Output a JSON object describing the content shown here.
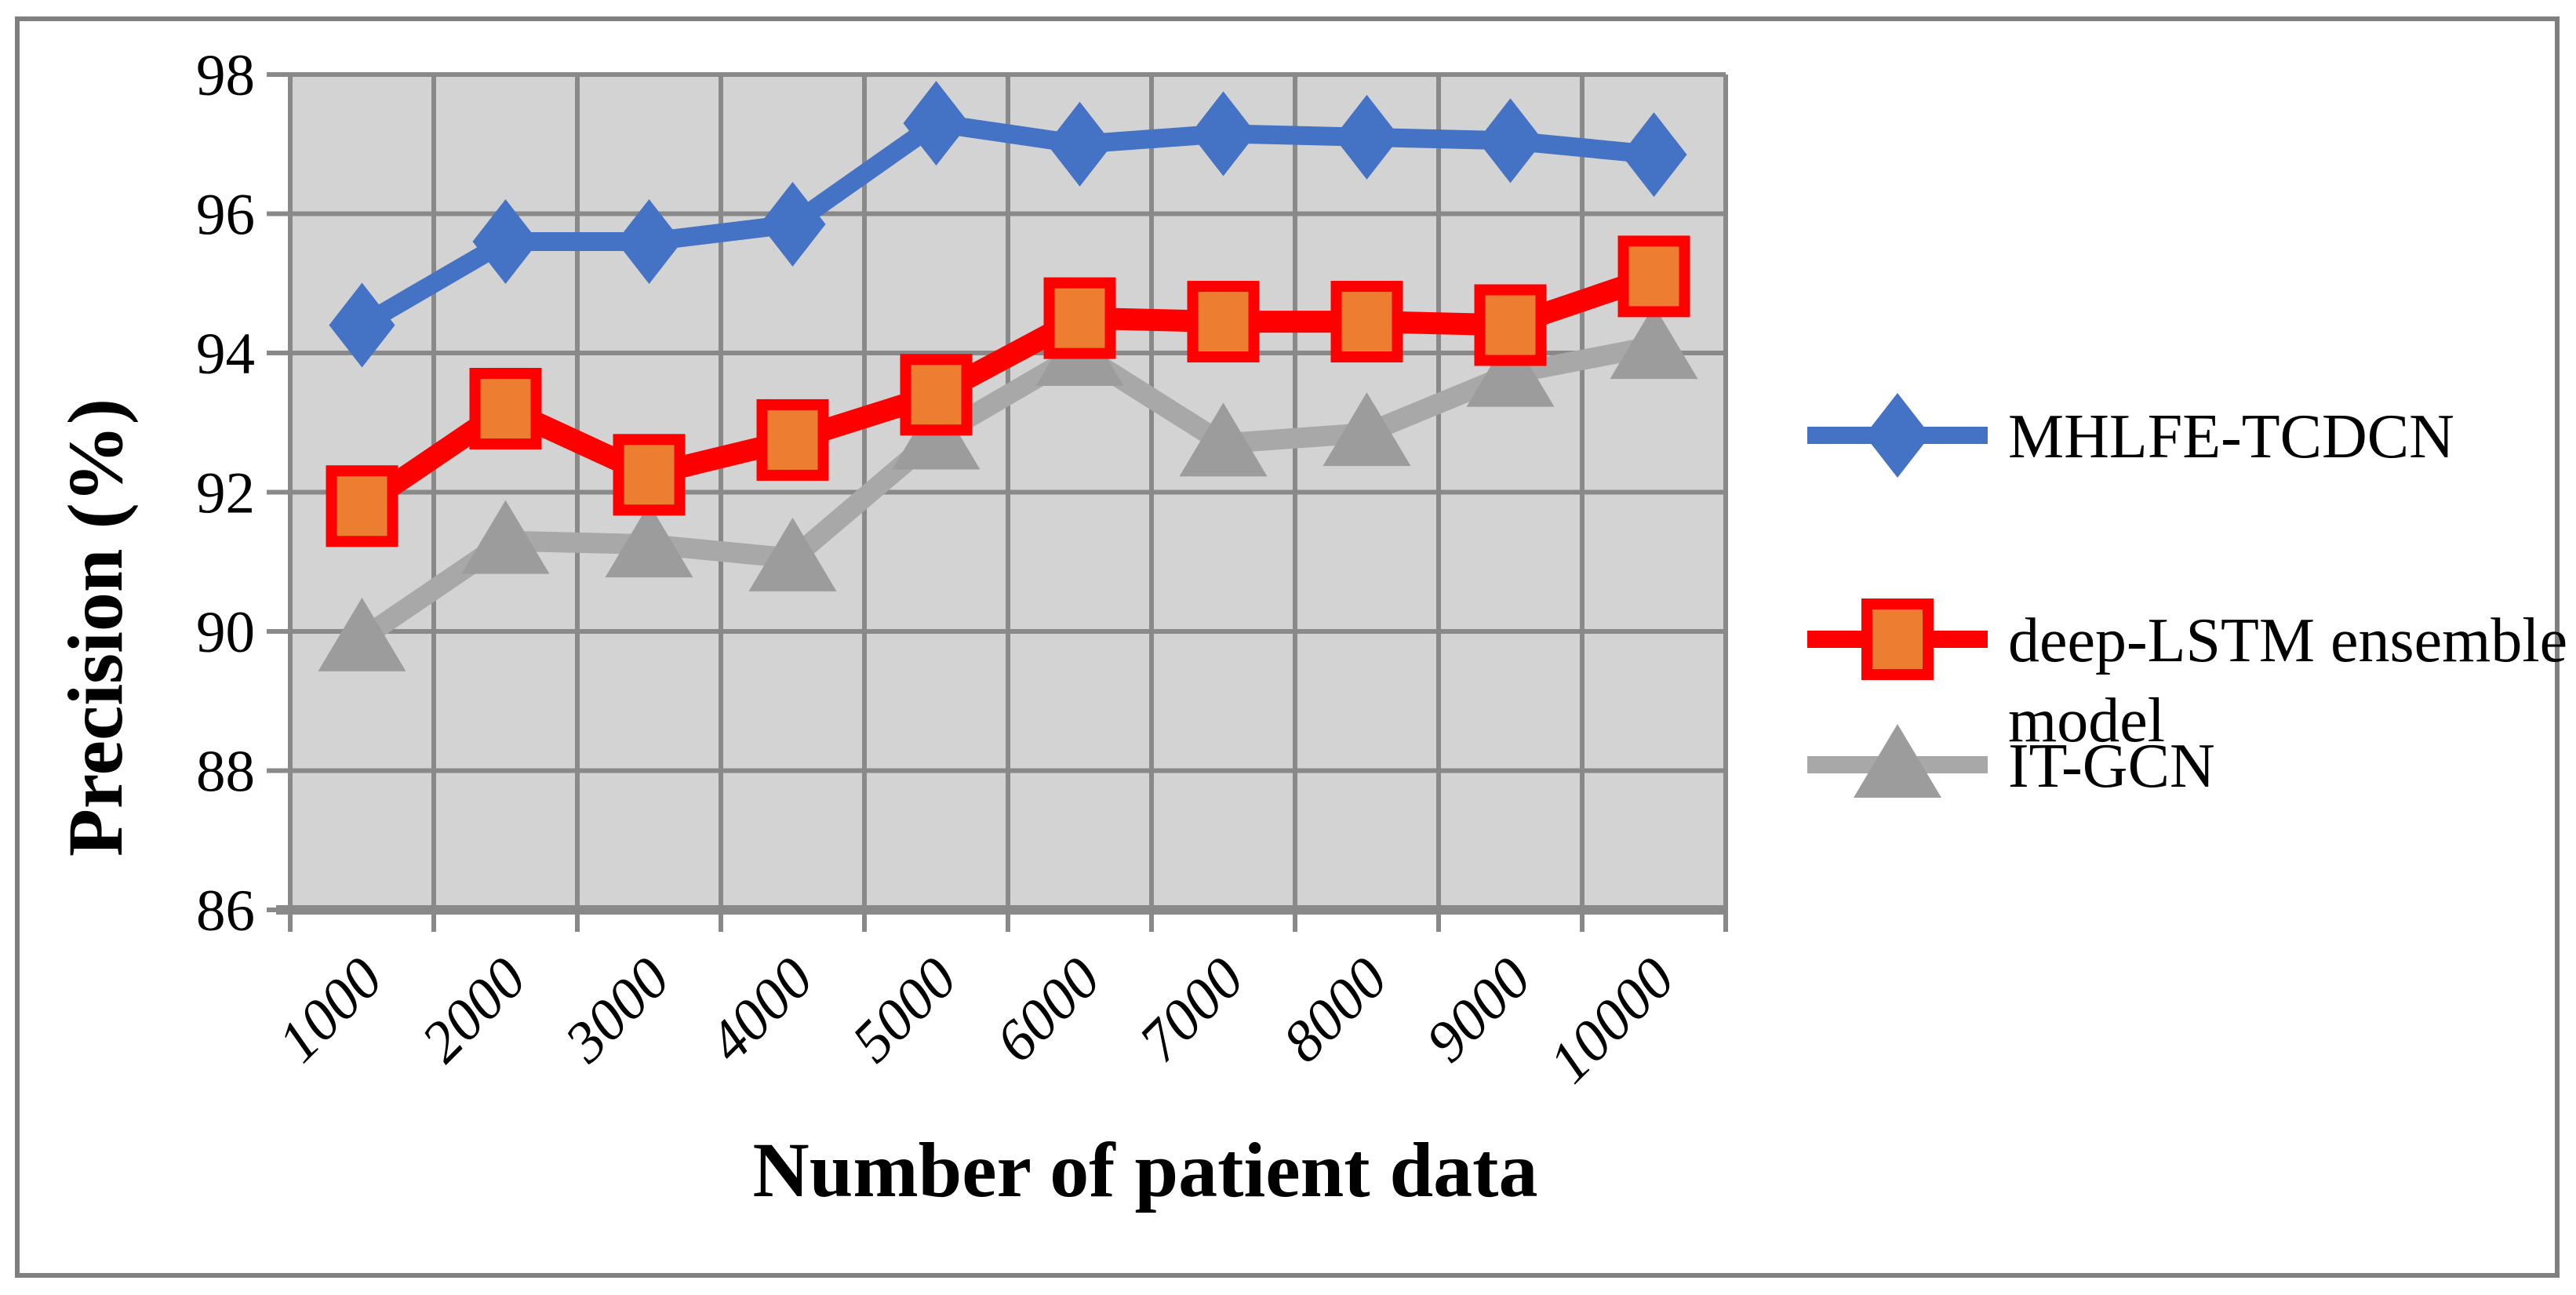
{
  "figure": {
    "background": "#FFFFFF",
    "border_color": "#7F7F7F"
  },
  "colors": {
    "plot_background": "#D3D3D3",
    "gridline": "#898989",
    "axis_line": "#898989",
    "text": "#000000",
    "series_blue": "#4472C4",
    "series_red": "#FF0000",
    "series_red_marker_fill": "#ED7D31",
    "series_gray": "#A8A8A8",
    "series_gray_marker_fill": "#9C9C9C"
  },
  "chart_data": {
    "type": "line",
    "title": "",
    "xlabel": "Number of patient data",
    "ylabel": "Precision (%)",
    "categories": [
      1000,
      2000,
      3000,
      4000,
      5000,
      6000,
      7000,
      8000,
      9000,
      10000
    ],
    "x_tick_labels": [
      "1000",
      "2000",
      "3000",
      "4000",
      "5000",
      "6000",
      "7000",
      "8000",
      "9000",
      "10000"
    ],
    "y_ticks": [
      86,
      88,
      90,
      92,
      94,
      96,
      98
    ],
    "y_tick_labels": [
      "86",
      "88",
      "90",
      "92",
      "94",
      "96",
      "98"
    ],
    "ylim": [
      86,
      98
    ],
    "grid": true,
    "legend_position": "right",
    "series": [
      {
        "name": "MHLFE-TCDCN",
        "marker": "diamond",
        "color": "#4472C4",
        "marker_fill": "#4472C4",
        "marker_stroke": "#4472C4",
        "values": [
          94.4,
          95.6,
          95.6,
          95.85,
          97.3,
          97.0,
          97.15,
          97.1,
          97.05,
          96.85
        ]
      },
      {
        "name": "deep-LSTM ensemble model",
        "marker": "square",
        "color": "#FF0000",
        "marker_fill": "#ED7D31",
        "marker_stroke": "#FF0000",
        "values": [
          91.8,
          93.2,
          92.25,
          92.75,
          93.4,
          94.5,
          94.45,
          94.45,
          94.4,
          95.1
        ]
      },
      {
        "name": "IT-GCN",
        "marker": "triangle",
        "color": "#A8A8A8",
        "marker_fill": "#9C9C9C",
        "marker_stroke": "#A8A8A8",
        "values": [
          89.9,
          91.3,
          91.25,
          91.05,
          92.8,
          94.0,
          92.7,
          92.85,
          93.7,
          94.1
        ]
      }
    ]
  },
  "legend": {
    "items": [
      {
        "lines": [
          "MHLFE-TCDCN"
        ]
      },
      {
        "lines": [
          "deep-LSTM ensemble",
          "model"
        ]
      },
      {
        "lines": [
          "IT-GCN"
        ]
      }
    ]
  }
}
